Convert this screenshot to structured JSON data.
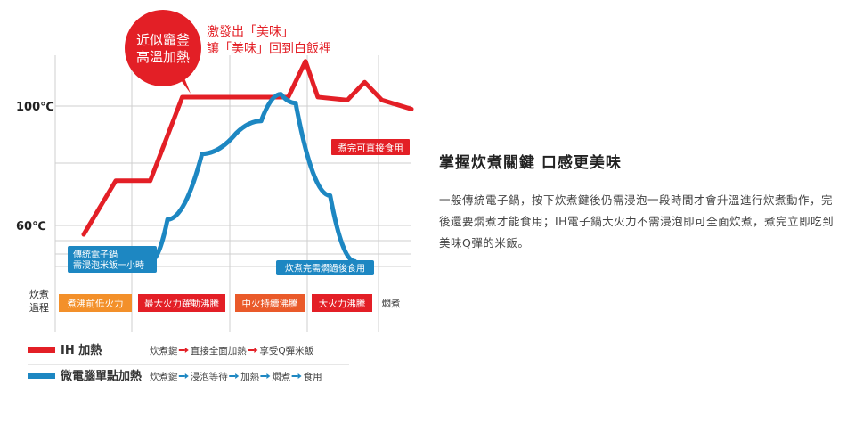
{
  "colors": {
    "ih": "#e31f26",
    "micro": "#1d87c2",
    "grid": "#cfcfcf",
    "stage_low": "#f3902a",
    "stage_max": "#e31f26",
    "stage_mid": "#ea5a2a",
    "stage_big": "#e31f26"
  },
  "chart_data": {
    "type": "line",
    "y_ticks": [
      "100℃",
      "60℃"
    ],
    "y_tick_values": [
      100,
      60
    ],
    "series": [
      {
        "name": "IH 加熱",
        "color": "#e31f26",
        "points": [
          [
            0.0,
            57
          ],
          [
            0.13,
            75
          ],
          [
            0.27,
            75
          ],
          [
            0.4,
            103
          ],
          [
            0.83,
            103
          ],
          [
            0.9,
            115
          ],
          [
            0.95,
            103
          ],
          [
            1.07,
            102
          ],
          [
            1.14,
            108
          ],
          [
            1.21,
            102
          ],
          [
            1.33,
            99
          ]
        ]
      },
      {
        "name": "微電腦單點加熱",
        "color": "#1d87c2",
        "points": [
          [
            0.27,
            48
          ],
          [
            0.34,
            62
          ],
          [
            0.48,
            84
          ],
          [
            0.62,
            91
          ],
          [
            0.72,
            95
          ],
          [
            0.8,
            104
          ],
          [
            0.86,
            101
          ],
          [
            1.0,
            70
          ],
          [
            1.1,
            48
          ]
        ]
      }
    ],
    "process_label": "炊煮過程",
    "stages": [
      {
        "label": "煮沸前低火力",
        "color": "#f3902a"
      },
      {
        "label": "最大火力躍動沸騰",
        "color": "#e31f26"
      },
      {
        "label": "中火持續沸騰",
        "color": "#ea5a2a"
      },
      {
        "label": "大火力沸騰",
        "color": "#e31f26"
      },
      {
        "label": "燜煮",
        "color": ""
      }
    ],
    "annotations": {
      "bubble": [
        "近似竈釜",
        "高溫加熱"
      ],
      "top_note": [
        "激發出「美味」",
        "讓「美味」回到白飯裡"
      ],
      "red_box": "煮完可直接食用",
      "blue_box_left": [
        "傳統電子鍋",
        "需浸泡米飯一小時"
      ],
      "blue_box_right": "炊煮完需燜過後食用"
    },
    "legend": [
      {
        "name": "IH 加熱",
        "color": "#e31f26",
        "steps": [
          "炊煮鍵",
          "直接全面加熱",
          "享受Q彈米飯"
        ]
      },
      {
        "name": "微電腦單點加熱",
        "color": "#1d87c2",
        "steps": [
          "炊煮鍵",
          "浸泡等待",
          "加熱",
          "燜煮",
          "食用"
        ]
      }
    ]
  },
  "side": {
    "title": "掌握炊煮關鍵 口感更美味",
    "body": "一般傳統電子鍋，按下炊煮鍵後仍需浸泡一段時間才會升溫進行炊煮動作，完後還要燜煮才能食用；IH電子鍋大火力不需浸泡即可全面炊煮，煮完立即吃到美味Q彈的米飯。"
  }
}
